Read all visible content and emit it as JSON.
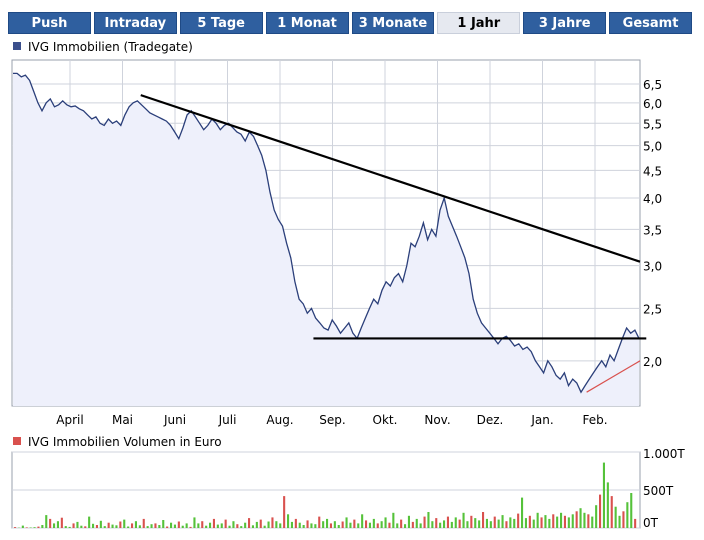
{
  "tabs": [
    {
      "label": "Push",
      "active": false
    },
    {
      "label": "Intraday",
      "active": false
    },
    {
      "label": "5 Tage",
      "active": false
    },
    {
      "label": "1 Monat",
      "active": false
    },
    {
      "label": "3 Monate",
      "active": false
    },
    {
      "label": "1 Jahr",
      "active": true
    },
    {
      "label": "3 Jahre",
      "active": false
    },
    {
      "label": "Gesamt",
      "active": false
    }
  ],
  "colors": {
    "price_line": "#2b3f7a",
    "price_fill": "#eef0fb",
    "legend_price": "#3b4f8c",
    "volume_bar": "#55c23a",
    "volume_bar_alt": "#d9514e",
    "legend_volume": "#d9514e",
    "grid": "#cfd3dc",
    "trend": "#000000",
    "support_red": "#d9514e"
  },
  "chart_data": [
    {
      "type": "line",
      "legend": "IVG Immobilien (Tradegate)",
      "x_ticks": [
        "April",
        "Mai",
        "Juni",
        "Juli",
        "Aug.",
        "Sep.",
        "Okt.",
        "Nov.",
        "Dez.",
        "Jan.",
        "Feb."
      ],
      "y_ticks": [
        "6,5",
        "6,0",
        "5,5",
        "5,0",
        "4,5",
        "4,0",
        "3,5",
        "3,0",
        "2,5",
        "2,0"
      ],
      "y_tick_values": [
        6.5,
        6.0,
        5.5,
        5.0,
        4.5,
        4.0,
        3.5,
        3.0,
        2.5,
        2.0
      ],
      "y_scale": "log",
      "ylim": [
        1.65,
        7.2
      ],
      "y_axis_side": "right",
      "grid": true,
      "series": [
        {
          "values": [
            6.8,
            6.8,
            6.7,
            6.75,
            6.6,
            6.3,
            6.0,
            5.8,
            6.0,
            6.1,
            5.9,
            5.95,
            6.05,
            5.95,
            5.9,
            5.92,
            5.85,
            5.8,
            5.7,
            5.6,
            5.65,
            5.5,
            5.45,
            5.6,
            5.5,
            5.55,
            5.45,
            5.7,
            5.9,
            6.0,
            6.05,
            5.95,
            5.85,
            5.75,
            5.7,
            5.65,
            5.6,
            5.55,
            5.45,
            5.3,
            5.15,
            5.4,
            5.7,
            5.8,
            5.65,
            5.5,
            5.35,
            5.45,
            5.6,
            5.5,
            5.35,
            5.45,
            5.5,
            5.4,
            5.3,
            5.25,
            5.1,
            5.3,
            5.2,
            5.0,
            4.8,
            4.5,
            4.1,
            3.8,
            3.65,
            3.55,
            3.3,
            3.1,
            2.8,
            2.6,
            2.55,
            2.45,
            2.5,
            2.4,
            2.35,
            2.3,
            2.28,
            2.38,
            2.32,
            2.25,
            2.3,
            2.35,
            2.25,
            2.2,
            2.3,
            2.4,
            2.5,
            2.6,
            2.55,
            2.7,
            2.8,
            2.75,
            2.85,
            2.9,
            2.8,
            3.0,
            3.3,
            3.25,
            3.4,
            3.6,
            3.35,
            3.5,
            3.4,
            3.8,
            4.0,
            3.7,
            3.55,
            3.4,
            3.25,
            3.1,
            2.9,
            2.6,
            2.45,
            2.35,
            2.3,
            2.25,
            2.2,
            2.15,
            2.2,
            2.22,
            2.18,
            2.13,
            2.15,
            2.1,
            2.12,
            2.08,
            2.0,
            1.95,
            1.9,
            2.0,
            1.95,
            1.88,
            1.85,
            1.9,
            1.8,
            1.85,
            1.82,
            1.75,
            1.8,
            1.85,
            1.9,
            1.95,
            2.0,
            1.95,
            2.05,
            2.0,
            2.1,
            2.2,
            2.3,
            2.25,
            2.28,
            2.2
          ]
        }
      ],
      "annotations": [
        {
          "type": "trendline",
          "from": {
            "x": 0.205,
            "y": 6.2
          },
          "to": {
            "x": 1.0,
            "y": 3.05
          },
          "color": "#000000"
        },
        {
          "type": "trendline",
          "from": {
            "x": 0.48,
            "y": 2.2
          },
          "to": {
            "x": 1.01,
            "y": 2.2
          },
          "color": "#000000"
        },
        {
          "type": "trendline",
          "from": {
            "x": 0.915,
            "y": 1.75
          },
          "to": {
            "x": 1.0,
            "y": 2.0
          },
          "color": "#d9514e"
        }
      ]
    },
    {
      "type": "bar",
      "legend": "IVG Immobilien Volumen in Euro",
      "y_ticks": [
        "1.000T",
        "500T",
        "0T"
      ],
      "y_tick_values": [
        1000,
        500,
        0
      ],
      "ylim": [
        0,
        1000
      ],
      "y_axis_side": "right",
      "grid": true,
      "values": [
        12,
        4,
        32,
        8,
        6,
        10,
        18,
        40,
        170,
        120,
        60,
        90,
        135,
        25,
        14,
        60,
        80,
        30,
        22,
        150,
        55,
        40,
        95,
        25,
        70,
        45,
        35,
        85,
        110,
        20,
        60,
        90,
        35,
        120,
        25,
        50,
        60,
        40,
        105,
        20,
        70,
        45,
        85,
        30,
        60,
        15,
        140,
        60,
        90,
        30,
        70,
        120,
        45,
        60,
        110,
        30,
        90,
        50,
        25,
        70,
        130,
        35,
        80,
        110,
        30,
        85,
        140,
        90,
        60,
        420,
        180,
        80,
        120,
        70,
        40,
        100,
        60,
        50,
        150,
        90,
        120,
        60,
        90,
        40,
        85,
        140,
        70,
        110,
        60,
        180,
        100,
        70,
        120,
        60,
        90,
        140,
        70,
        200,
        60,
        110,
        50,
        160,
        80,
        120,
        60,
        150,
        210,
        90,
        130,
        70,
        100,
        150,
        80,
        140,
        110,
        200,
        90,
        160,
        130,
        100,
        210,
        120,
        90,
        150,
        110,
        170,
        90,
        140,
        120,
        190,
        400,
        130,
        160,
        110,
        200,
        140,
        170,
        120,
        180,
        150,
        200,
        160,
        140,
        180,
        220,
        260,
        200,
        180,
        150,
        300,
        440,
        860,
        600,
        420,
        280,
        160,
        220,
        340,
        460,
        120
      ]
    }
  ]
}
